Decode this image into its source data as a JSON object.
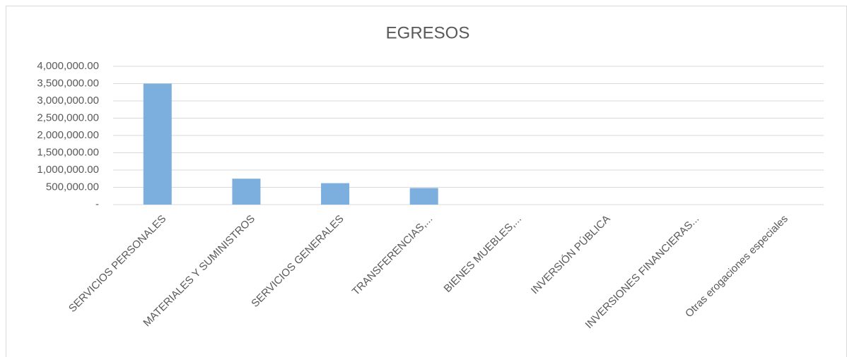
{
  "chart_data": {
    "type": "bar",
    "title": "EGRESOS",
    "categories": [
      "SERVICIOS PERSONALES",
      "MATERIALES Y SUMINISTROS",
      "SERVICIOS GENERALES",
      "TRANSFERENCIAS,...",
      "BIENES MUEBLES,...",
      "INVERSIÓN PÚBLICA",
      "INVERSIONES FINANCIERAS...",
      "Otras erogaciones especiales"
    ],
    "values": [
      3500000,
      750000,
      620000,
      480000,
      0,
      0,
      0,
      0
    ],
    "color": "#7cafdd",
    "ylim": [
      0,
      4000000
    ],
    "yticks": [
      {
        "value": 0,
        "label": "-"
      },
      {
        "value": 500000,
        "label": "500,000.00"
      },
      {
        "value": 1000000,
        "label": "1,000,000.00"
      },
      {
        "value": 1500000,
        "label": "1,500,000.00"
      },
      {
        "value": 2000000,
        "label": "2,000,000.00"
      },
      {
        "value": 2500000,
        "label": "2,500,000.00"
      },
      {
        "value": 3000000,
        "label": "3,000,000.00"
      },
      {
        "value": 3500000,
        "label": "3,500,000.00"
      },
      {
        "value": 4000000,
        "label": "4,000,000.00"
      }
    ],
    "grid": true
  }
}
